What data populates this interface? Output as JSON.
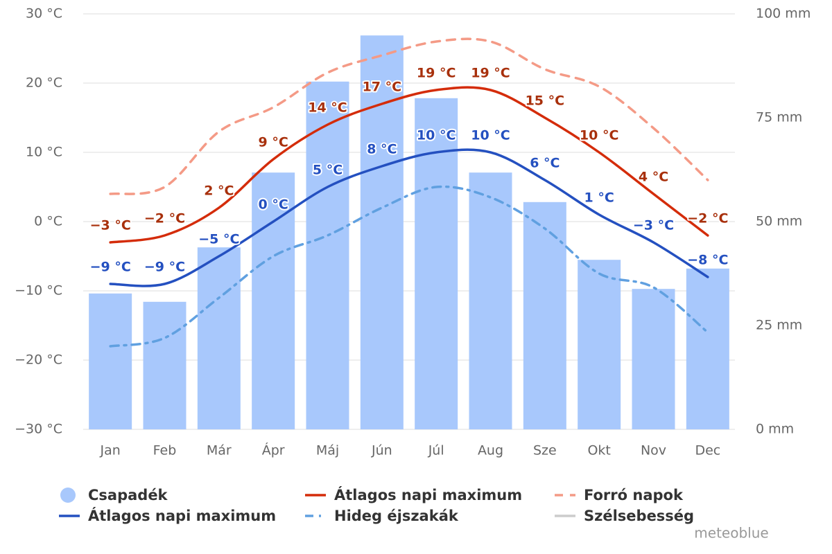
{
  "chart_data": {
    "type": "combo",
    "categories": [
      "Jan",
      "Feb",
      "Már",
      "Ápr",
      "Máj",
      "Jún",
      "Júl",
      "Aug",
      "Sze",
      "Okt",
      "Nov",
      "Dec"
    ],
    "ylim": [
      -30,
      30
    ],
    "yticks": [
      {
        "value": -30,
        "label": "−30 °C"
      },
      {
        "value": -20,
        "label": "−20 °C"
      },
      {
        "value": -10,
        "label": "−10 °C"
      },
      {
        "value": 0,
        "label": "0 °C"
      },
      {
        "value": 10,
        "label": "10 °C"
      },
      {
        "value": 20,
        "label": "20 °C"
      },
      {
        "value": 30,
        "label": "30 °C"
      }
    ],
    "y2lim": [
      0,
      100
    ],
    "y2ticks": [
      {
        "value": 0,
        "label": "0 mm"
      },
      {
        "value": 25,
        "label": "25 mm"
      },
      {
        "value": 50,
        "label": "50 mm"
      },
      {
        "value": 75,
        "label": "75 mm"
      },
      {
        "value": 100,
        "label": "100 mm"
      }
    ],
    "grid": true,
    "series": [
      {
        "name": "Csapadék",
        "type": "bar",
        "axis": "y2",
        "color": "#a8c8fc",
        "values": [
          32.7,
          30.7,
          43.8,
          61.8,
          83.7,
          94.8,
          79.7,
          61.8,
          54.7,
          40.8,
          33.8,
          38.7
        ]
      },
      {
        "name": "Átlagos napi maximum",
        "type": "line",
        "color": "#d42c0a",
        "label_color": "#a8300c",
        "values": [
          -3,
          -2,
          2,
          9,
          14,
          17,
          19,
          19,
          15,
          10,
          4,
          -2
        ],
        "value_labels": [
          "−3 °C",
          "−2 °C",
          "2 °C",
          "9 °C",
          "14 °C",
          "17 °C",
          "19 °C",
          "19 °C",
          "15 °C",
          "10 °C",
          "4 °C",
          "−2 °C"
        ]
      },
      {
        "name": "Forró napok",
        "type": "line",
        "dash": "dash",
        "color": "#f49a86",
        "values": [
          4,
          5,
          13,
          16.5,
          21.5,
          24,
          26,
          26,
          22,
          19.5,
          13.5,
          6
        ]
      },
      {
        "name": "Átlagos napi maximum",
        "type": "line",
        "color": "#2450c0",
        "label_color": "#2450c0",
        "values": [
          -9,
          -9,
          -5,
          0,
          5,
          8,
          10,
          10,
          6,
          1,
          -3,
          -8
        ],
        "value_labels": [
          "−9 °C",
          "−9 °C",
          "−5 °C",
          "0 °C",
          "5 °C",
          "8 °C",
          "10 °C",
          "10 °C",
          "6 °C",
          "1 °C",
          "−3 °C",
          "−8 °C"
        ]
      },
      {
        "name": "Hideg éjszakák",
        "type": "line",
        "dash": "dashdot",
        "color": "#60a0e0",
        "values": [
          -18,
          -16.8,
          -11,
          -5,
          -2,
          2,
          5,
          3.5,
          -1,
          -7.5,
          -9.5,
          -16
        ]
      }
    ],
    "hidden_series": [
      {
        "name": "Szélsebesség",
        "color": "#cccccc"
      }
    ],
    "credit": "meteoblue"
  }
}
